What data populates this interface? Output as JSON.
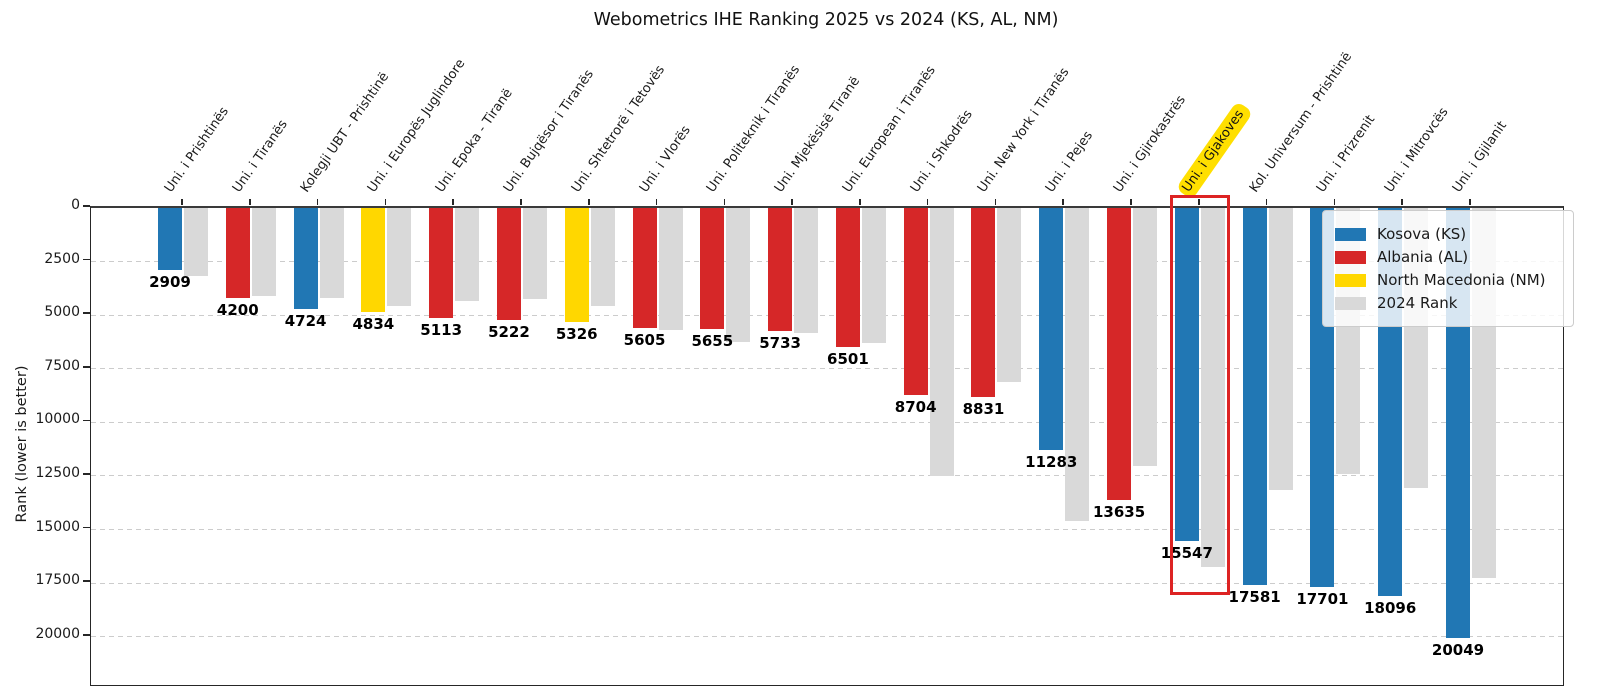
{
  "title": "Webometrics IHE Ranking 2025 vs 2024 (KS, AL, NM)",
  "ylabel": "Rank (lower is better)",
  "chart_data": {
    "type": "bar",
    "title": "Webometrics IHE Ranking 2025 vs 2024 (KS, AL, NM)",
    "xlabel": "",
    "ylabel": "Rank (lower is better)",
    "y_ticks": [
      0,
      2500,
      5000,
      7500,
      10000,
      12500,
      15000,
      17500,
      20000
    ],
    "ylim": [
      0,
      22250
    ],
    "y_axis_inverted_note": "rank axis grows downward, lower is better",
    "grid": "horizontal dashed",
    "legend_position": "upper right",
    "legend": [
      {
        "label": "Kosova (KS)",
        "color": "#2177b4"
      },
      {
        "label": "Albania (AL)",
        "color": "#d62728"
      },
      {
        "label": "North Macedonia (NM)",
        "color": "#ffd700"
      },
      {
        "label": "2024 Rank",
        "color": "#d9d9d9"
      }
    ],
    "country_colors": {
      "KS": "#2177b4",
      "AL": "#d62728",
      "NM": "#ffd700"
    },
    "rank_2024_color": "#d9d9d9",
    "categories": [
      "Uni. i Prishtinës",
      "Uni. i Tiranës",
      "Kolegji UBT - Prishtinë",
      "Uni. i Europës Juglindore",
      "Uni. Epoka - Tiranë",
      "Uni. Bujqësor i Tiranës",
      "Uni. Shtetrorë i Tetovës",
      "Uni. i Vlorës",
      "Uni. Politeknik i Tiranës",
      "Uni. Mjekësisë Tiranë",
      "Uni. European i Tiranës",
      "Uni. i Shkodrës",
      "Uni. New York i Tiranës",
      "Uni. i Pejes",
      "Uni. i Gjirokastrës",
      "Uni. i Gjakoves",
      "Kol. Universum - Prishtinë",
      "Uni. i Prizrenit",
      "Uni. i Mitrovcës",
      "Uni. i Gjilanit"
    ],
    "countries": [
      "KS",
      "AL",
      "KS",
      "NM",
      "AL",
      "AL",
      "NM",
      "AL",
      "AL",
      "AL",
      "AL",
      "AL",
      "AL",
      "KS",
      "AL",
      "KS",
      "KS",
      "KS",
      "KS",
      "KS"
    ],
    "series": [
      {
        "name": "2025 Rank",
        "values": [
          2909,
          4200,
          4724,
          4834,
          5113,
          5222,
          5326,
          5605,
          5655,
          5733,
          6501,
          8704,
          8831,
          11283,
          13635,
          15547,
          17581,
          17701,
          18096,
          20049
        ]
      },
      {
        "name": "2024 Rank (estimated from gridlines)",
        "values": [
          3150,
          4100,
          4200,
          4550,
          4350,
          4250,
          4550,
          5670,
          6250,
          5810,
          6300,
          12500,
          8100,
          14600,
          12050,
          16750,
          13150,
          12400,
          13050,
          17250
        ]
      }
    ],
    "highlight": {
      "index": 15,
      "label": "Uni. i Gjakoves",
      "label_highlight_color": "#ffdf00",
      "box_color": "#dd2323"
    }
  }
}
